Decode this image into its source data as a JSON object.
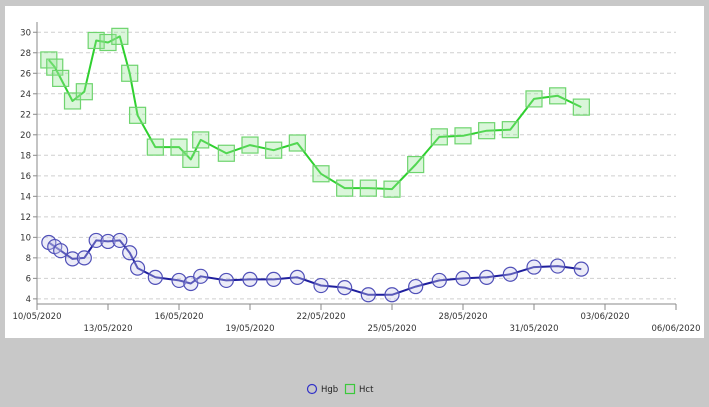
{
  "chart_data": {
    "type": "line",
    "title": "",
    "xlabel": "",
    "ylabel": "",
    "ylim": [
      3.5,
      31
    ],
    "y_ticks": [
      "4",
      "6",
      "8",
      "10",
      "12",
      "14",
      "16",
      "18",
      "20",
      "22",
      "24",
      "26",
      "28",
      "30"
    ],
    "x_ticks": [
      {
        "label": "10/05/2020",
        "date": "2020-05-10",
        "row": "upper"
      },
      {
        "label": "13/05/2020",
        "date": "2020-05-13",
        "row": "lower"
      },
      {
        "label": "16/05/2020",
        "date": "2020-05-16",
        "row": "upper"
      },
      {
        "label": "19/05/2020",
        "date": "2020-05-19",
        "row": "lower"
      },
      {
        "label": "22/05/2020",
        "date": "2020-05-22",
        "row": "upper"
      },
      {
        "label": "25/05/2020",
        "date": "2020-05-25",
        "row": "lower"
      },
      {
        "label": "28/05/2020",
        "date": "2020-05-28",
        "row": "upper"
      },
      {
        "label": "31/05/2020",
        "date": "2020-05-31",
        "row": "lower"
      },
      {
        "label": "03/06/2020",
        "date": "2020-06-03",
        "row": "upper"
      },
      {
        "label": "06/06/2020",
        "date": "2020-06-06",
        "row": "lower"
      }
    ],
    "xlim": [
      "2020-05-10",
      "2020-06-06"
    ],
    "grid": "horizontal-dashed",
    "legend_position": "bottom-center",
    "series": [
      {
        "name": "Hgb",
        "color": "#1f1f9e",
        "marker": "circle",
        "points": [
          [
            "2020-05-10 12:00",
            9.5
          ],
          [
            "2020-05-10 18:00",
            9.1
          ],
          [
            "2020-05-11 00:00",
            8.7
          ],
          [
            "2020-05-11 12:00",
            7.9
          ],
          [
            "2020-05-12 00:00",
            8.0
          ],
          [
            "2020-05-12 12:00",
            9.7
          ],
          [
            "2020-05-13 00:00",
            9.6
          ],
          [
            "2020-05-13 12:00",
            9.7
          ],
          [
            "2020-05-13 22:00",
            8.5
          ],
          [
            "2020-05-14 06:00",
            7.0
          ],
          [
            "2020-05-15 00:00",
            6.1
          ],
          [
            "2020-05-16 00:00",
            5.8
          ],
          [
            "2020-05-16 12:00",
            5.5
          ],
          [
            "2020-05-16 22:00",
            6.2
          ],
          [
            "2020-05-18 00:00",
            5.8
          ],
          [
            "2020-05-19 00:00",
            5.9
          ],
          [
            "2020-05-20 00:00",
            5.9
          ],
          [
            "2020-05-21 00:00",
            6.1
          ],
          [
            "2020-05-22 00:00",
            5.3
          ],
          [
            "2020-05-23 00:00",
            5.1
          ],
          [
            "2020-05-24 00:00",
            4.4
          ],
          [
            "2020-05-25 00:00",
            4.4
          ],
          [
            "2020-05-26 00:00",
            5.2
          ],
          [
            "2020-05-27 00:00",
            5.8
          ],
          [
            "2020-05-28 00:00",
            6.0
          ],
          [
            "2020-05-29 00:00",
            6.1
          ],
          [
            "2020-05-30 00:00",
            6.4
          ],
          [
            "2020-05-31 00:00",
            7.1
          ],
          [
            "2020-06-01 00:00",
            7.2
          ],
          [
            "2020-06-02 00:00",
            6.9
          ]
        ]
      },
      {
        "name": "Hct",
        "color": "#2fd02f",
        "marker": "square",
        "points": [
          [
            "2020-05-10 12:00",
            27.3
          ],
          [
            "2020-05-10 18:00",
            26.6
          ],
          [
            "2020-05-11 00:00",
            25.5
          ],
          [
            "2020-05-11 12:00",
            23.3
          ],
          [
            "2020-05-12 00:00",
            24.2
          ],
          [
            "2020-05-12 12:00",
            29.2
          ],
          [
            "2020-05-13 00:00",
            29.0
          ],
          [
            "2020-05-13 12:00",
            29.6
          ],
          [
            "2020-05-13 22:00",
            26.0
          ],
          [
            "2020-05-14 06:00",
            21.9
          ],
          [
            "2020-05-15 00:00",
            18.8
          ],
          [
            "2020-05-16 00:00",
            18.8
          ],
          [
            "2020-05-16 12:00",
            17.6
          ],
          [
            "2020-05-16 22:00",
            19.5
          ],
          [
            "2020-05-18 00:00",
            18.2
          ],
          [
            "2020-05-19 00:00",
            19.0
          ],
          [
            "2020-05-20 00:00",
            18.5
          ],
          [
            "2020-05-21 00:00",
            19.2
          ],
          [
            "2020-05-22 00:00",
            16.2
          ],
          [
            "2020-05-23 00:00",
            14.8
          ],
          [
            "2020-05-24 00:00",
            14.8
          ],
          [
            "2020-05-25 00:00",
            14.7
          ],
          [
            "2020-05-26 00:00",
            17.1
          ],
          [
            "2020-05-27 00:00",
            19.8
          ],
          [
            "2020-05-28 00:00",
            19.9
          ],
          [
            "2020-05-29 00:00",
            20.4
          ],
          [
            "2020-05-30 00:00",
            20.5
          ],
          [
            "2020-05-31 00:00",
            23.5
          ],
          [
            "2020-06-01 00:00",
            23.8
          ],
          [
            "2020-06-02 00:00",
            22.7
          ]
        ]
      }
    ]
  }
}
